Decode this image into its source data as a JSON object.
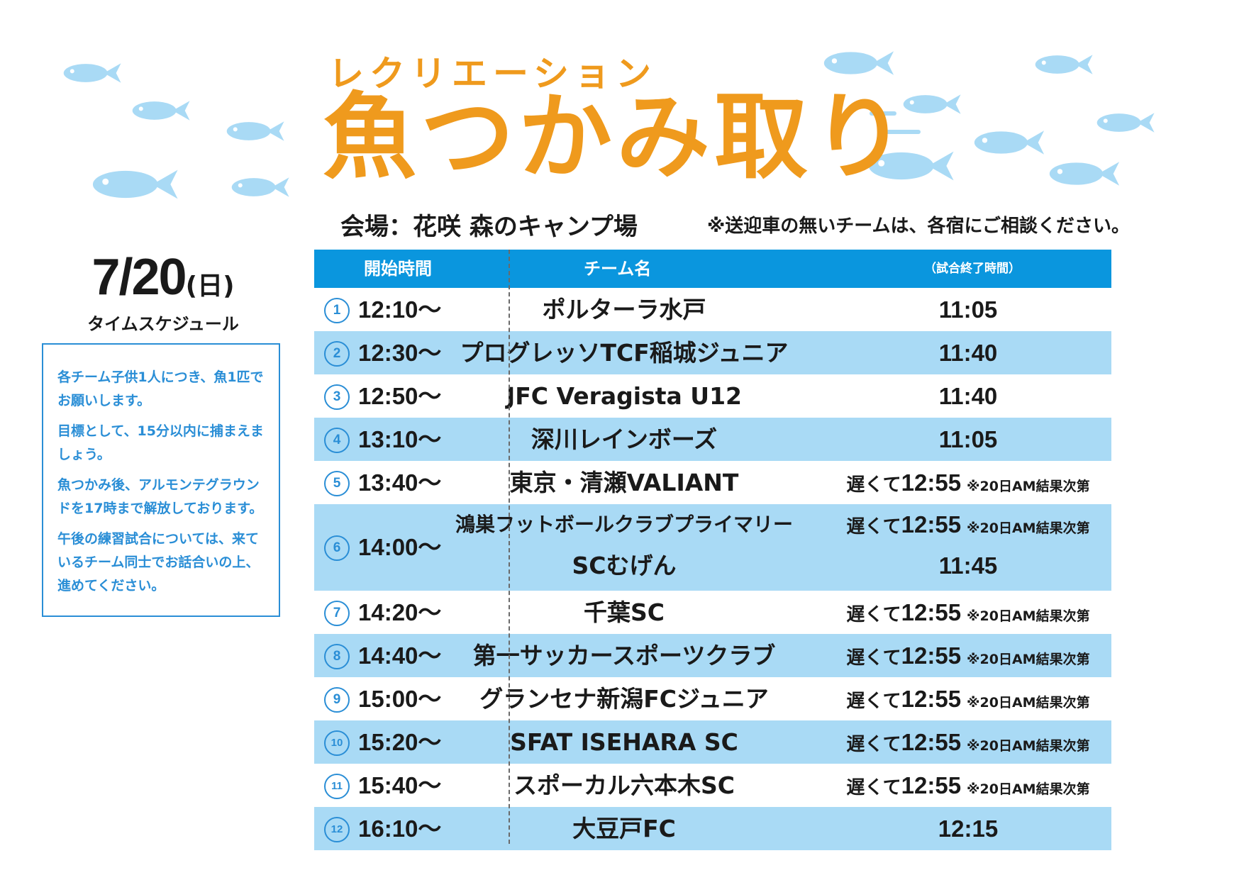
{
  "subtitle": "レクリエーション",
  "title": "魚つかみ取り",
  "venue": "会場：花咲 森のキャンプ場",
  "transport_note": "※送迎車の無いチームは、各宿にご相談ください。",
  "date": {
    "month_day": "7/20",
    "weekday": "(日)",
    "caption": "タイムスケジュール"
  },
  "rules": [
    "各チーム子供1人につき、魚1匹でお願いします。",
    "目標として、15分以内に捕まえましょう。",
    "魚つかみ後、アルモンテグラウンドを17時まで解放しております。",
    "午後の練習試合については、来ているチーム同士でお話合いの上、進めてください。"
  ],
  "table": {
    "headers": {
      "start": "開始時間",
      "team": "チーム名",
      "end": "（試合終了時間）"
    },
    "rows": [
      {
        "no": "1",
        "start": "12:10〜",
        "team": "ポルターラ水戸",
        "end": "11:05"
      },
      {
        "no": "2",
        "start": "12:30〜",
        "team": "プログレッソTCF稲城ジュニア",
        "end": "11:40"
      },
      {
        "no": "3",
        "start": "12:50〜",
        "team": "JFC Veragista U12",
        "end": "11:40"
      },
      {
        "no": "4",
        "start": "13:10〜",
        "team": "深川レインボーズ",
        "end": "11:05"
      },
      {
        "no": "5",
        "start": "13:40〜",
        "team": "東京・清瀬VALIANT",
        "late": "遅くて",
        "late_time": "12:55",
        "remark": "※20日AM結果次第"
      },
      {
        "no": "6",
        "start": "14:00〜",
        "team": "鴻巣フットボールクラブプライマリー",
        "late": "遅くて",
        "late_time": "12:55",
        "remark": "※20日AM結果次第",
        "team2": "SCむげん",
        "end2": "11:45"
      },
      {
        "no": "7",
        "start": "14:20〜",
        "team": "千葉SC",
        "late": "遅くて",
        "late_time": "12:55",
        "remark": "※20日AM結果次第"
      },
      {
        "no": "8",
        "start": "14:40〜",
        "team": "第一サッカースポーツクラブ",
        "late": "遅くて",
        "late_time": "12:55",
        "remark": "※20日AM結果次第"
      },
      {
        "no": "9",
        "start": "15:00〜",
        "team": "グランセナ新潟FCジュニア",
        "late": "遅くて",
        "late_time": "12:55",
        "remark": "※20日AM結果次第"
      },
      {
        "no": "10",
        "start": "15:20〜",
        "team": "SFAT ISEHARA SC",
        "late": "遅くて",
        "late_time": "12:55",
        "remark": "※20日AM結果次第"
      },
      {
        "no": "11",
        "start": "15:40〜",
        "team": "スポーカル六本木SC",
        "late": "遅くて",
        "late_time": "12:55",
        "remark": "※20日AM結果次第"
      },
      {
        "no": "12",
        "start": "16:10〜",
        "team": "大豆戸FC",
        "end": "12:15"
      }
    ]
  },
  "colors": {
    "title": "#ef9a1d",
    "header_bg": "#0a96de",
    "row_alt": "#a9daf5",
    "accent_blue": "#2a8ed6",
    "fish": "#a9daf5"
  },
  "decorations": {
    "fish_icon": "fish-icon"
  }
}
